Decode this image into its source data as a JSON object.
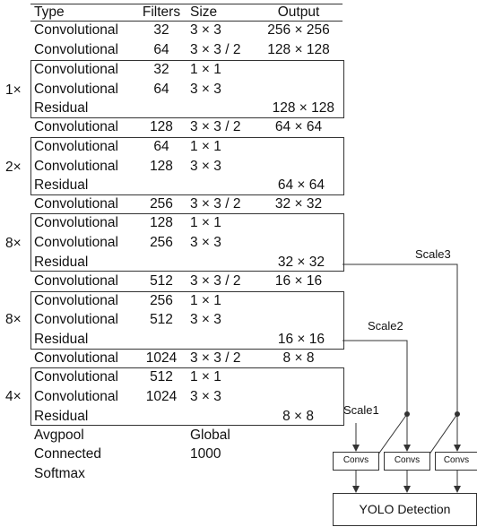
{
  "table": {
    "headers": {
      "type": "Type",
      "filters": "Filters",
      "size": "Size",
      "output": "Output"
    },
    "rows": [
      {
        "type": "Convolutional",
        "filters": "32",
        "size": "3 × 3",
        "output": "256 × 256"
      },
      {
        "type": "Convolutional",
        "filters": "64",
        "size": "3 × 3 / 2",
        "output": "128 × 128"
      },
      {
        "type": "Convolutional",
        "filters": "32",
        "size": "1 × 1",
        "output": ""
      },
      {
        "type": "Convolutional",
        "filters": "64",
        "size": "3 × 3",
        "output": ""
      },
      {
        "type": "Residual",
        "filters": "",
        "size": "",
        "output": "128 × 128"
      },
      {
        "type": "Convolutional",
        "filters": "128",
        "size": "3 × 3 / 2",
        "output": "64 × 64"
      },
      {
        "type": "Convolutional",
        "filters": "64",
        "size": "1 × 1",
        "output": ""
      },
      {
        "type": "Convolutional",
        "filters": "128",
        "size": "3 × 3",
        "output": ""
      },
      {
        "type": "Residual",
        "filters": "",
        "size": "",
        "output": "64 × 64"
      },
      {
        "type": "Convolutional",
        "filters": "256",
        "size": "3 × 3 / 2",
        "output": "32 × 32"
      },
      {
        "type": "Convolutional",
        "filters": "128",
        "size": "1 × 1",
        "output": ""
      },
      {
        "type": "Convolutional",
        "filters": "256",
        "size": "3 × 3",
        "output": ""
      },
      {
        "type": "Residual",
        "filters": "",
        "size": "",
        "output": "32 × 32"
      },
      {
        "type": "Convolutional",
        "filters": "512",
        "size": "3 × 3 / 2",
        "output": "16 × 16"
      },
      {
        "type": "Convolutional",
        "filters": "256",
        "size": "1 × 1",
        "output": ""
      },
      {
        "type": "Convolutional",
        "filters": "512",
        "size": "3 × 3",
        "output": ""
      },
      {
        "type": "Residual",
        "filters": "",
        "size": "",
        "output": "16 × 16"
      },
      {
        "type": "Convolutional",
        "filters": "1024",
        "size": "3 × 3 / 2",
        "output": "8 × 8"
      },
      {
        "type": "Convolutional",
        "filters": "512",
        "size": "1 × 1",
        "output": ""
      },
      {
        "type": "Convolutional",
        "filters": "1024",
        "size": "3 × 3",
        "output": ""
      },
      {
        "type": "Residual",
        "filters": "",
        "size": "",
        "output": "8 × 8"
      },
      {
        "type": "Avgpool",
        "filters": "",
        "size": "Global",
        "output": ""
      },
      {
        "type": "Connected",
        "filters": "",
        "size": "1000",
        "output": ""
      },
      {
        "type": "Softmax",
        "filters": "",
        "size": "",
        "output": ""
      }
    ],
    "repeat_blocks": [
      {
        "label": "1×"
      },
      {
        "label": "2×"
      },
      {
        "label": "8×"
      },
      {
        "label": "8×"
      },
      {
        "label": "4×"
      }
    ]
  },
  "detection": {
    "scale1_label": "Scale1",
    "scale2_label": "Scale2",
    "scale3_label": "Scale3",
    "convs_label": "Convs",
    "yolo_label": "YOLO Detection"
  }
}
